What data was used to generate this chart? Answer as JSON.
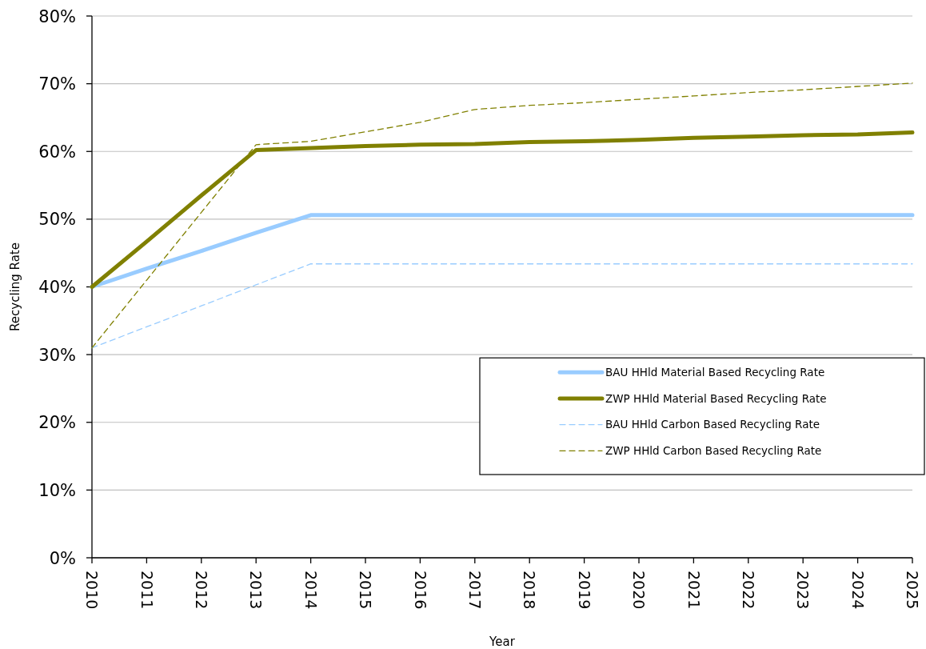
{
  "chart_data": {
    "type": "line",
    "xlabel": "Year",
    "ylabel": "Recycling Rate",
    "categories": [
      "2010",
      "2011",
      "2012",
      "2013",
      "2014",
      "2015",
      "2016",
      "2017",
      "2018",
      "2019",
      "2020",
      "2021",
      "2022",
      "2023",
      "2024",
      "2025"
    ],
    "series": [
      {
        "name": "BAU HHld Material Based Recycling Rate",
        "color": "#99ccff",
        "line_style": "solid",
        "values": [
          40,
          42.7,
          45.3,
          48.0,
          50.6,
          50.6,
          50.6,
          50.6,
          50.6,
          50.6,
          50.6,
          50.6,
          50.6,
          50.6,
          50.6,
          50.6
        ]
      },
      {
        "name": "ZWP HHld Material Based Recycling Rate",
        "color": "#808000",
        "line_style": "solid",
        "values": [
          40,
          46.7,
          53.5,
          60.2,
          60.5,
          60.8,
          61.0,
          61.1,
          61.4,
          61.5,
          61.7,
          62.0,
          62.2,
          62.4,
          62.5,
          62.8
        ]
      },
      {
        "name": "BAU HHld Carbon Based Recycling Rate",
        "color": "#99ccff",
        "line_style": "dashed",
        "values": [
          31,
          34.1,
          37.2,
          40.3,
          43.4,
          43.4,
          43.4,
          43.4,
          43.4,
          43.4,
          43.4,
          43.4,
          43.4,
          43.4,
          43.4,
          43.4
        ]
      },
      {
        "name": "ZWP HHld Carbon Based Recycling Rate",
        "color": "#808000",
        "line_style": "dashed",
        "values": [
          31,
          41,
          51,
          61.0,
          61.5,
          62.9,
          64.3,
          66.2,
          66.8,
          67.2,
          67.7,
          68.2,
          68.7,
          69.1,
          69.6,
          70.1
        ]
      }
    ],
    "ylim": [
      0,
      80
    ],
    "yticks": [
      {
        "value": 0,
        "label": "0%"
      },
      {
        "value": 10,
        "label": "10%"
      },
      {
        "value": 20,
        "label": "20%"
      },
      {
        "value": 30,
        "label": "30%"
      },
      {
        "value": 40,
        "label": "40%"
      },
      {
        "value": 50,
        "label": "50%"
      },
      {
        "value": 60,
        "label": "60%"
      },
      {
        "value": 70,
        "label": "70%"
      },
      {
        "value": 80,
        "label": "80%"
      }
    ],
    "grid": "y",
    "legend": "bottom right",
    "marker": "none"
  }
}
